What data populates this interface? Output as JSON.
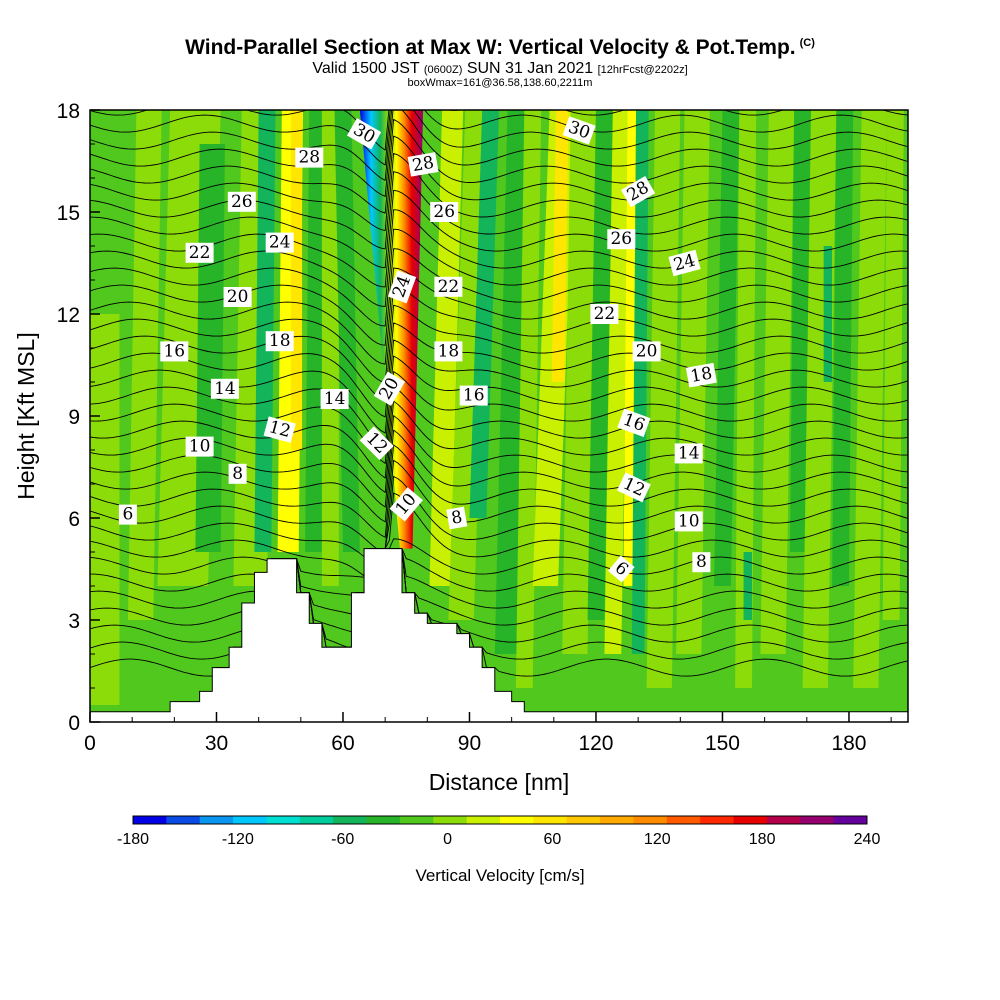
{
  "title": "Wind-Parallel Section at Max W: Vertical Velocity & Pot.Temp.",
  "copyright_mark": "(C)",
  "subtitle": {
    "part1": "Valid 1500 JST",
    "part2": "(0600Z)",
    "part3": "SUN 31 Jan 2021",
    "part4": "[12hrFcst@2202z]"
  },
  "subtitle2": "boxWmax=161@36.58,138.60,2211m",
  "chart_data": {
    "type": "heatmap",
    "xlabel": "Distance [nm]",
    "ylabel": "Height [Kft MSL]",
    "xlim": [
      0,
      194
    ],
    "ylim": [
      0,
      18
    ],
    "x_ticks": [
      0,
      30,
      60,
      90,
      120,
      150,
      180
    ],
    "y_ticks": [
      0,
      3,
      6,
      9,
      12,
      15,
      18
    ],
    "colorbar": {
      "label": "Vertical Velocity [cm/s]",
      "min": -180,
      "max": 240,
      "step": 20,
      "tick_values": [
        -180,
        -120,
        -60,
        0,
        60,
        120,
        180,
        240
      ],
      "colors": [
        "#0000e6",
        "#0a4be6",
        "#0a96f0",
        "#00c8ff",
        "#00e0d2",
        "#00cd9b",
        "#14b45a",
        "#28b428",
        "#50c81e",
        "#8cdc0a",
        "#c8f000",
        "#ffff00",
        "#ffe600",
        "#ffc800",
        "#ffaa00",
        "#ff8c00",
        "#ff5a00",
        "#ff2800",
        "#e60000",
        "#b4004b",
        "#96006e",
        "#64009b"
      ]
    },
    "terrain": [
      {
        "x": 0,
        "h": 0.3
      },
      {
        "x": 19,
        "h": 0.3
      },
      {
        "x": 19,
        "h": 0.6
      },
      {
        "x": 26,
        "h": 0.6
      },
      {
        "x": 26,
        "h": 0.9
      },
      {
        "x": 29,
        "h": 0.9
      },
      {
        "x": 29,
        "h": 1.6
      },
      {
        "x": 33,
        "h": 1.6
      },
      {
        "x": 33,
        "h": 2.2
      },
      {
        "x": 36,
        "h": 2.2
      },
      {
        "x": 36,
        "h": 3.5
      },
      {
        "x": 39,
        "h": 3.5
      },
      {
        "x": 39,
        "h": 4.4
      },
      {
        "x": 42,
        "h": 4.4
      },
      {
        "x": 42,
        "h": 4.8
      },
      {
        "x": 49,
        "h": 4.8
      },
      {
        "x": 49,
        "h": 3.8
      },
      {
        "x": 52,
        "h": 3.8
      },
      {
        "x": 52,
        "h": 2.9
      },
      {
        "x": 55,
        "h": 2.9
      },
      {
        "x": 55,
        "h": 2.2
      },
      {
        "x": 62,
        "h": 2.2
      },
      {
        "x": 62,
        "h": 3.8
      },
      {
        "x": 65,
        "h": 3.8
      },
      {
        "x": 65,
        "h": 5.1
      },
      {
        "x": 74,
        "h": 5.1
      },
      {
        "x": 74,
        "h": 3.8
      },
      {
        "x": 77,
        "h": 3.8
      },
      {
        "x": 77,
        "h": 3.2
      },
      {
        "x": 80,
        "h": 3.2
      },
      {
        "x": 80,
        "h": 2.9
      },
      {
        "x": 87,
        "h": 2.9
      },
      {
        "x": 87,
        "h": 2.6
      },
      {
        "x": 90,
        "h": 2.6
      },
      {
        "x": 90,
        "h": 2.2
      },
      {
        "x": 93,
        "h": 2.2
      },
      {
        "x": 93,
        "h": 1.6
      },
      {
        "x": 96,
        "h": 1.6
      },
      {
        "x": 96,
        "h": 0.9
      },
      {
        "x": 100,
        "h": 0.9
      },
      {
        "x": 100,
        "h": 0.6
      },
      {
        "x": 103,
        "h": 0.6
      },
      {
        "x": 103,
        "h": 0.3
      },
      {
        "x": 194,
        "h": 0.3
      }
    ],
    "theta_contour_labels": [
      {
        "x": 9,
        "y": 6.1,
        "v": "6",
        "rot": 0
      },
      {
        "x": 35,
        "y": 7.3,
        "v": "8",
        "rot": 0
      },
      {
        "x": 26,
        "y": 8.1,
        "v": "10",
        "rot": 0
      },
      {
        "x": 45,
        "y": 8.6,
        "v": "12",
        "rot": 15
      },
      {
        "x": 32,
        "y": 9.8,
        "v": "14",
        "rot": 0
      },
      {
        "x": 58,
        "y": 9.5,
        "v": "14",
        "rot": 0
      },
      {
        "x": 20,
        "y": 10.9,
        "v": "16",
        "rot": 0
      },
      {
        "x": 45,
        "y": 11.2,
        "v": "18",
        "rot": 0
      },
      {
        "x": 35,
        "y": 12.5,
        "v": "20",
        "rot": 0
      },
      {
        "x": 26,
        "y": 13.8,
        "v": "22",
        "rot": 0
      },
      {
        "x": 45,
        "y": 14.1,
        "v": "24",
        "rot": 0
      },
      {
        "x": 36,
        "y": 15.3,
        "v": "26",
        "rot": 0
      },
      {
        "x": 52,
        "y": 16.6,
        "v": "28",
        "rot": 0
      },
      {
        "x": 65,
        "y": 17.3,
        "v": "30",
        "rot": 30
      },
      {
        "x": 79,
        "y": 16.4,
        "v": "28",
        "rot": -10
      },
      {
        "x": 84,
        "y": 15.0,
        "v": "26",
        "rot": 0
      },
      {
        "x": 74,
        "y": 12.8,
        "v": "24",
        "rot": -70
      },
      {
        "x": 85,
        "y": 12.8,
        "v": "22",
        "rot": 0
      },
      {
        "x": 71,
        "y": 9.8,
        "v": "20",
        "rot": -60
      },
      {
        "x": 85,
        "y": 10.9,
        "v": "18",
        "rot": 0
      },
      {
        "x": 91,
        "y": 9.6,
        "v": "16",
        "rot": 0
      },
      {
        "x": 68,
        "y": 8.2,
        "v": "12",
        "rot": 45
      },
      {
        "x": 75,
        "y": 6.4,
        "v": "10",
        "rot": -50
      },
      {
        "x": 87,
        "y": 6.0,
        "v": "8",
        "rot": -10
      },
      {
        "x": 116,
        "y": 17.4,
        "v": "30",
        "rot": 20
      },
      {
        "x": 130,
        "y": 15.6,
        "v": "28",
        "rot": -30
      },
      {
        "x": 126,
        "y": 14.2,
        "v": "26",
        "rot": 0
      },
      {
        "x": 141,
        "y": 13.5,
        "v": "24",
        "rot": -15
      },
      {
        "x": 122,
        "y": 12.0,
        "v": "22",
        "rot": 0
      },
      {
        "x": 132,
        "y": 10.9,
        "v": "20",
        "rot": 0
      },
      {
        "x": 145,
        "y": 10.2,
        "v": "18",
        "rot": -10
      },
      {
        "x": 129,
        "y": 8.8,
        "v": "16",
        "rot": 20
      },
      {
        "x": 142,
        "y": 7.9,
        "v": "14",
        "rot": 0
      },
      {
        "x": 129,
        "y": 6.9,
        "v": "12",
        "rot": 25
      },
      {
        "x": 142,
        "y": 5.9,
        "v": "10",
        "rot": 0
      },
      {
        "x": 126,
        "y": 4.5,
        "v": "6",
        "rot": 40
      },
      {
        "x": 145,
        "y": 4.7,
        "v": "8",
        "rot": 0
      }
    ]
  }
}
